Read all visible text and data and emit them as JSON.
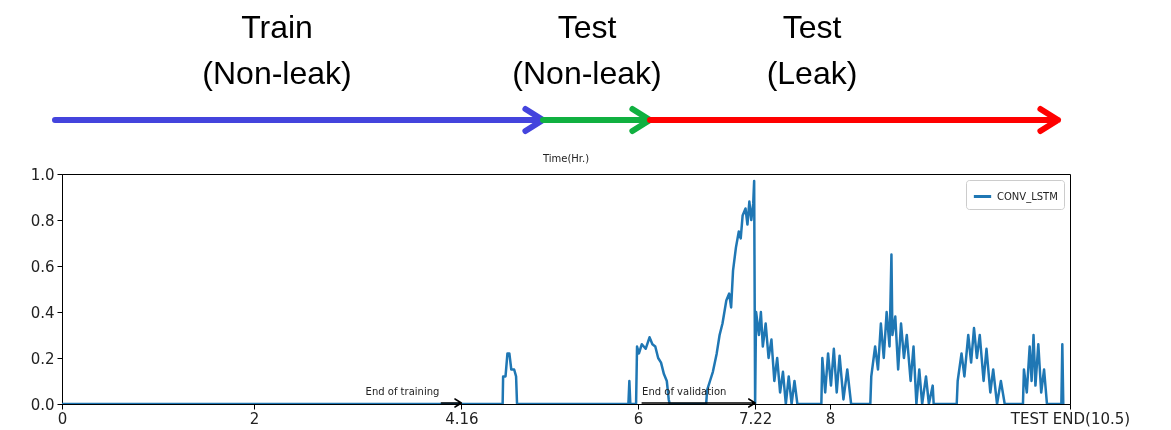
{
  "chart_data": {
    "type": "line",
    "title": "Time(Hr.)",
    "annotations": [
      "Train (Non-leak)",
      "Test (Non-leak)",
      "Test (Leak)",
      {
        "text": "End of training",
        "x": 4.16,
        "y": 0
      },
      {
        "text": "End of validation",
        "x": 7.22,
        "y": 0
      }
    ],
    "xlim": [
      0,
      10.5
    ],
    "xticks": [
      0,
      2,
      4.16,
      6,
      7.22,
      8,
      {
        "value": 10.5,
        "label": "TEST END(10.5)"
      }
    ],
    "ylim": [
      0,
      1
    ],
    "yticks": [
      {
        "value": 0,
        "label": "0.0"
      },
      {
        "value": 0.2,
        "label": "0.2"
      },
      {
        "value": 0.4,
        "label": "0.4"
      },
      {
        "value": 0.6,
        "label": "0.6"
      },
      {
        "value": 0.8,
        "label": "0.8"
      },
      {
        "value": 1,
        "label": "1.0"
      }
    ],
    "legend": "top right",
    "marker": "none",
    "line_style": "solid",
    "series": [
      {
        "name": "CONV_LSTM",
        "color": "#1f77b4",
        "x": [
          0,
          4.59,
          4.595,
          4.62,
          4.64,
          4.66,
          4.68,
          4.71,
          4.73,
          4.74,
          5.9,
          5.91,
          5.92,
          5.98,
          5.99,
          6.01,
          6.04,
          6.08,
          6.12,
          6.15,
          6.18,
          6.21,
          6.24,
          6.27,
          6.3,
          6.32,
          6.33,
          6.71,
          6.72,
          6.75,
          6.78,
          6.82,
          6.85,
          6.88,
          6.92,
          6.95,
          6.97,
          6.99,
          7.02,
          7.05,
          7.07,
          7.09,
          7.12,
          7.14,
          7.16,
          7.18,
          7.2,
          7.21,
          7.22,
          7.23,
          7.26,
          7.28,
          7.3,
          7.33,
          7.36,
          7.39,
          7.42,
          7.45,
          7.48,
          7.51,
          7.54,
          7.57,
          7.6,
          7.63,
          7.66,
          7.91,
          7.92,
          7.95,
          7.98,
          8.01,
          8.04,
          8.07,
          8.1,
          8.14,
          8.18,
          8.22,
          8.42,
          8.43,
          8.47,
          8.5,
          8.53,
          8.56,
          8.59,
          8.62,
          8.64,
          8.65,
          8.68,
          8.71,
          8.74,
          8.77,
          8.8,
          8.84,
          8.87,
          8.9,
          8.93,
          8.96,
          9.0,
          9.03,
          9.07,
          9.08,
          9.32,
          9.33,
          9.37,
          9.4,
          9.44,
          9.47,
          9.5,
          9.53,
          9.56,
          9.6,
          9.63,
          9.67,
          9.7,
          9.74,
          9.78,
          9.82,
          10.01,
          10.02,
          10.05,
          10.08,
          10.1,
          10.12,
          10.14,
          10.17,
          10.2,
          10.23,
          10.26,
          10.41,
          10.42,
          10.43
        ],
        "values": [
          0,
          0,
          0.12,
          0.12,
          0.22,
          0.22,
          0.15,
          0.15,
          0.12,
          0,
          0,
          0.1,
          0,
          0,
          0.25,
          0.22,
          0.26,
          0.24,
          0.29,
          0.26,
          0.25,
          0.2,
          0.18,
          0.13,
          0.1,
          0.02,
          0,
          0,
          0.06,
          0.1,
          0.14,
          0.22,
          0.3,
          0.35,
          0.45,
          0.48,
          0.42,
          0.58,
          0.68,
          0.75,
          0.72,
          0.82,
          0.85,
          0.78,
          0.88,
          0.8,
          0.87,
          0.97,
          0,
          0.4,
          0.3,
          0.4,
          0.25,
          0.35,
          0.2,
          0.28,
          0.1,
          0.2,
          0.05,
          0.14,
          0,
          0.12,
          0,
          0.1,
          0,
          0,
          0.2,
          0.05,
          0.22,
          0.08,
          0.24,
          0.05,
          0.21,
          0.02,
          0.15,
          0,
          0,
          0.12,
          0.25,
          0.15,
          0.35,
          0.2,
          0.4,
          0.25,
          0.65,
          0.3,
          0.38,
          0.15,
          0.35,
          0.2,
          0.3,
          0.1,
          0.25,
          0,
          0.15,
          0,
          0.12,
          0,
          0.08,
          0,
          0,
          0.1,
          0.22,
          0.12,
          0.3,
          0.18,
          0.33,
          0.2,
          0.3,
          0.1,
          0.24,
          0.05,
          0.15,
          0,
          0.1,
          0,
          0,
          0.15,
          0.05,
          0.25,
          0.1,
          0.3,
          0.08,
          0.26,
          0.05,
          0.15,
          0,
          0,
          0.26,
          0
        ]
      }
    ]
  }
}
